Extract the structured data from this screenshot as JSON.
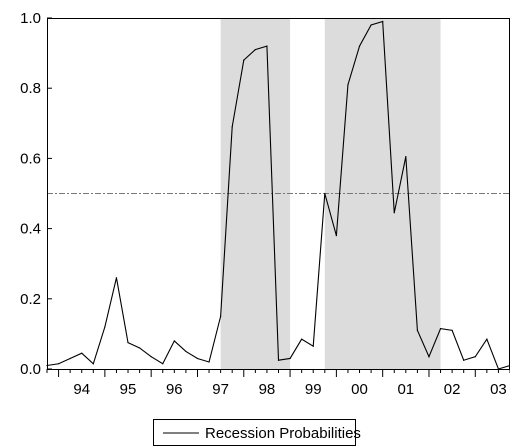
{
  "chart_data": {
    "type": "line",
    "title": "",
    "xlabel": "",
    "ylabel": "",
    "xlim": [
      1993.75,
      2003.75
    ],
    "ylim": [
      0,
      1.0
    ],
    "yticks": [
      0.0,
      0.2,
      0.4,
      0.6,
      0.8,
      1.0
    ],
    "ytick_labels": [
      "0.0",
      "0.2",
      "0.4",
      "0.6",
      "0.8",
      "1.0"
    ],
    "xtick_labels": [
      "94",
      "95",
      "96",
      "97",
      "98",
      "99",
      "00",
      "01",
      "02",
      "03"
    ],
    "xtick_label_years": [
      1994,
      1995,
      1996,
      1997,
      1998,
      1999,
      2000,
      2001,
      2002,
      2003
    ],
    "threshold": 0.5,
    "shaded_periods": [
      [
        1997.5,
        1999.0
      ],
      [
        1999.75,
        2002.25
      ]
    ],
    "grid": false,
    "legend_position": "bottom-center",
    "series": [
      {
        "name": "Recession Probabilities",
        "color": "#000000",
        "x": [
          1993.75,
          1994.0,
          1994.25,
          1994.5,
          1994.75,
          1995.0,
          1995.25,
          1995.5,
          1995.75,
          1996.0,
          1996.25,
          1996.5,
          1996.75,
          1997.0,
          1997.25,
          1997.5,
          1997.75,
          1998.0,
          1998.25,
          1998.5,
          1998.75,
          1999.0,
          1999.25,
          1999.5,
          1999.75,
          2000.0,
          2000.25,
          2000.5,
          2000.75,
          2001.0,
          2001.25,
          2001.5,
          2001.75,
          2002.0,
          2002.25,
          2002.5,
          2002.75,
          2003.0,
          2003.25,
          2003.5,
          2003.75
        ],
        "values": [
          0.01,
          0.015,
          0.03,
          0.045,
          0.015,
          0.12,
          0.26,
          0.075,
          0.06,
          0.035,
          0.015,
          0.08,
          0.05,
          0.03,
          0.02,
          0.15,
          0.69,
          0.88,
          0.91,
          0.92,
          0.025,
          0.03,
          0.085,
          0.065,
          0.5,
          0.38,
          0.81,
          0.92,
          0.98,
          0.99,
          0.445,
          0.605,
          0.11,
          0.035,
          0.115,
          0.11,
          0.025,
          0.035,
          0.085,
          0.0,
          0.01
        ]
      }
    ]
  }
}
